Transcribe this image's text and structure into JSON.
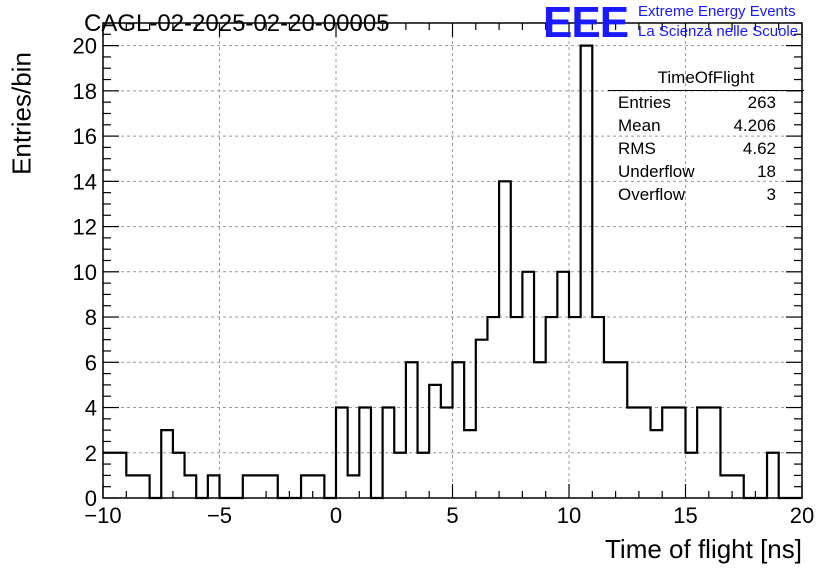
{
  "chart_data": {
    "type": "bar",
    "title": "CAGL-02-2025-02-20-00005",
    "xlabel": "Time of flight [ns]",
    "ylabel": "Entries/bin",
    "xlim": [
      -10,
      20
    ],
    "ylim": [
      0,
      21
    ],
    "bin_width": 0.5,
    "x_ticks": [
      "−10",
      "−5",
      "0",
      "5",
      "10",
      "15",
      "20"
    ],
    "y_ticks": [
      "0",
      "2",
      "4",
      "6",
      "8",
      "10",
      "12",
      "14",
      "16",
      "18",
      "20"
    ],
    "grid": true,
    "bins_start": [
      -10,
      -9.5,
      -9,
      -8.5,
      -8,
      -7.5,
      -7,
      -6.5,
      -6,
      -5.5,
      -5,
      -4.5,
      -4,
      -3.5,
      -3,
      -2.5,
      -2,
      -1.5,
      -1,
      -0.5,
      0,
      0.5,
      1,
      1.5,
      2,
      2.5,
      3,
      3.5,
      4,
      4.5,
      5,
      5.5,
      6,
      6.5,
      7,
      7.5,
      8,
      8.5,
      9,
      9.5,
      10,
      10.5,
      11,
      11.5,
      12,
      12.5,
      13,
      13.5,
      14,
      14.5,
      15,
      15.5,
      16,
      16.5,
      17,
      17.5,
      18,
      18.5,
      19,
      19.5
    ],
    "values": [
      2,
      2,
      1,
      1,
      0,
      3,
      2,
      1,
      0,
      1,
      0,
      0,
      1,
      1,
      1,
      0,
      0,
      1,
      1,
      0,
      4,
      1,
      4,
      0,
      4,
      2,
      6,
      2,
      5,
      4,
      6,
      3,
      7,
      8,
      14,
      8,
      10,
      6,
      8,
      10,
      8,
      20,
      8,
      6,
      6,
      4,
      4,
      3,
      4,
      4,
      2,
      4,
      4,
      1,
      1,
      0,
      0,
      2,
      0,
      0
    ]
  },
  "logo": {
    "mark": "EEE",
    "line1": "Extreme Energy Events",
    "line2": "La Scienza nelle Scuole"
  },
  "stats_box": {
    "title": "TimeOfFlight",
    "rows": [
      {
        "label": "Entries",
        "value": "263"
      },
      {
        "label": "Mean",
        "value": "4.206"
      },
      {
        "label": "RMS",
        "value": "4.62"
      },
      {
        "label": "Underflow",
        "value": "18"
      },
      {
        "label": "Overflow",
        "value": "3"
      }
    ]
  },
  "colors": {
    "logo": "#1a1aff",
    "line": "#000000",
    "grid": "#999999"
  }
}
